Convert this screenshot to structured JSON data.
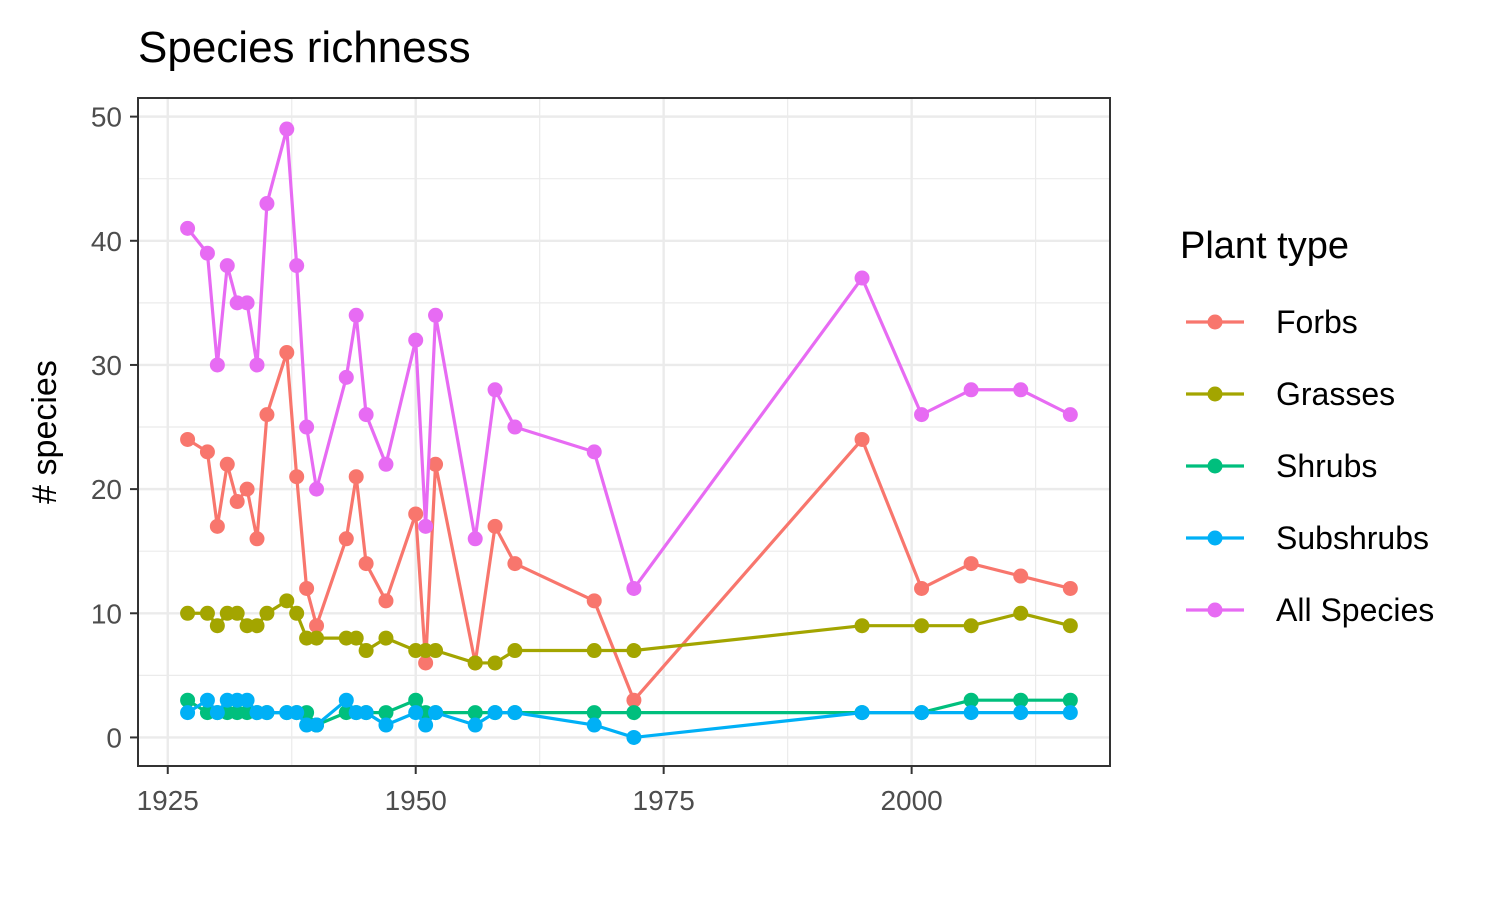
{
  "chart_data": {
    "type": "line",
    "title": "Species richness",
    "xlabel": "",
    "ylabel": "# species",
    "xlim": [
      1922,
      2020
    ],
    "ylim": [
      -2.3,
      51.5
    ],
    "x_ticks": [
      1925,
      1950,
      1975,
      2000
    ],
    "y_ticks": [
      0,
      10,
      20,
      30,
      40,
      50
    ],
    "grid": true,
    "legend": {
      "title": "Plant type",
      "position": "right"
    },
    "series": [
      {
        "name": "Forbs",
        "color": "#F8766D",
        "points": [
          [
            1927,
            24
          ],
          [
            1929,
            23
          ],
          [
            1930,
            17
          ],
          [
            1931,
            22
          ],
          [
            1932,
            19
          ],
          [
            1933,
            20
          ],
          [
            1934,
            16
          ],
          [
            1935,
            26
          ],
          [
            1937,
            31
          ],
          [
            1938,
            21
          ],
          [
            1939,
            12
          ],
          [
            1940,
            9
          ],
          [
            1943,
            16
          ],
          [
            1944,
            21
          ],
          [
            1945,
            14
          ],
          [
            1947,
            11
          ],
          [
            1950,
            18
          ],
          [
            1951,
            6
          ],
          [
            1952,
            22
          ],
          [
            1956,
            6
          ],
          [
            1958,
            17
          ],
          [
            1960,
            14
          ],
          [
            1968,
            11
          ],
          [
            1972,
            3
          ],
          [
            1995,
            24
          ],
          [
            2001,
            12
          ],
          [
            2006,
            14
          ],
          [
            2011,
            13
          ],
          [
            2016,
            12
          ]
        ]
      },
      {
        "name": "Grasses",
        "color": "#A3A500",
        "points": [
          [
            1927,
            10
          ],
          [
            1929,
            10
          ],
          [
            1930,
            9
          ],
          [
            1931,
            10
          ],
          [
            1932,
            10
          ],
          [
            1933,
            9
          ],
          [
            1934,
            9
          ],
          [
            1935,
            10
          ],
          [
            1937,
            11
          ],
          [
            1938,
            10
          ],
          [
            1939,
            8
          ],
          [
            1940,
            8
          ],
          [
            1943,
            8
          ],
          [
            1944,
            8
          ],
          [
            1945,
            7
          ],
          [
            1947,
            8
          ],
          [
            1950,
            7
          ],
          [
            1951,
            7
          ],
          [
            1952,
            7
          ],
          [
            1956,
            6
          ],
          [
            1958,
            6
          ],
          [
            1960,
            7
          ],
          [
            1968,
            7
          ],
          [
            1972,
            7
          ],
          [
            1995,
            9
          ],
          [
            2001,
            9
          ],
          [
            2006,
            9
          ],
          [
            2011,
            10
          ],
          [
            2016,
            9
          ]
        ]
      },
      {
        "name": "Shrubs",
        "color": "#00BF7D",
        "points": [
          [
            1927,
            3
          ],
          [
            1929,
            2
          ],
          [
            1930,
            2
          ],
          [
            1931,
            2
          ],
          [
            1932,
            2
          ],
          [
            1933,
            2
          ],
          [
            1934,
            2
          ],
          [
            1935,
            2
          ],
          [
            1937,
            2
          ],
          [
            1938,
            2
          ],
          [
            1939,
            2
          ],
          [
            1940,
            1
          ],
          [
            1943,
            2
          ],
          [
            1944,
            2
          ],
          [
            1945,
            2
          ],
          [
            1947,
            2
          ],
          [
            1950,
            3
          ],
          [
            1951,
            2
          ],
          [
            1952,
            2
          ],
          [
            1956,
            2
          ],
          [
            1958,
            2
          ],
          [
            1960,
            2
          ],
          [
            1968,
            2
          ],
          [
            1972,
            2
          ],
          [
            1995,
            2
          ],
          [
            2001,
            2
          ],
          [
            2006,
            3
          ],
          [
            2011,
            3
          ],
          [
            2016,
            3
          ]
        ]
      },
      {
        "name": "Subshrubs",
        "color": "#00B0F6",
        "points": [
          [
            1927,
            2
          ],
          [
            1929,
            3
          ],
          [
            1930,
            2
          ],
          [
            1931,
            3
          ],
          [
            1932,
            3
          ],
          [
            1933,
            3
          ],
          [
            1934,
            2
          ],
          [
            1935,
            2
          ],
          [
            1937,
            2
          ],
          [
            1938,
            2
          ],
          [
            1939,
            1
          ],
          [
            1940,
            1
          ],
          [
            1943,
            3
          ],
          [
            1944,
            2
          ],
          [
            1945,
            2
          ],
          [
            1947,
            1
          ],
          [
            1950,
            2
          ],
          [
            1951,
            1
          ],
          [
            1952,
            2
          ],
          [
            1956,
            1
          ],
          [
            1958,
            2
          ],
          [
            1960,
            2
          ],
          [
            1968,
            1
          ],
          [
            1972,
            0
          ],
          [
            1995,
            2
          ],
          [
            2001,
            2
          ],
          [
            2006,
            2
          ],
          [
            2011,
            2
          ],
          [
            2016,
            2
          ]
        ]
      },
      {
        "name": "All Species",
        "color": "#E76BF3",
        "points": [
          [
            1927,
            41
          ],
          [
            1929,
            39
          ],
          [
            1930,
            30
          ],
          [
            1931,
            38
          ],
          [
            1932,
            35
          ],
          [
            1933,
            35
          ],
          [
            1934,
            30
          ],
          [
            1935,
            43
          ],
          [
            1937,
            49
          ],
          [
            1938,
            38
          ],
          [
            1939,
            25
          ],
          [
            1940,
            20
          ],
          [
            1943,
            29
          ],
          [
            1944,
            34
          ],
          [
            1945,
            26
          ],
          [
            1947,
            22
          ],
          [
            1950,
            32
          ],
          [
            1951,
            17
          ],
          [
            1952,
            34
          ],
          [
            1956,
            16
          ],
          [
            1958,
            28
          ],
          [
            1960,
            25
          ],
          [
            1968,
            23
          ],
          [
            1972,
            12
          ],
          [
            1995,
            37
          ],
          [
            2001,
            26
          ],
          [
            2006,
            28
          ],
          [
            2011,
            28
          ],
          [
            2016,
            26
          ]
        ]
      }
    ]
  }
}
